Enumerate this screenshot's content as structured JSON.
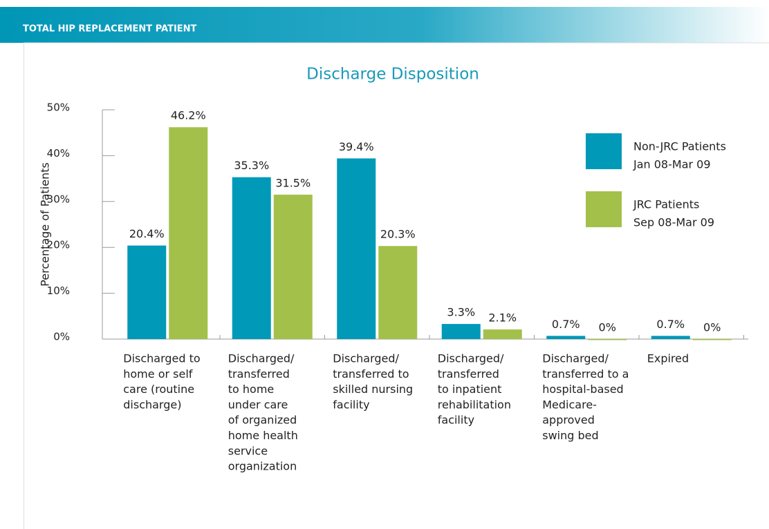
{
  "header": "TOTAL HIP REPLACEMENT PATIENT",
  "chart_data": {
    "type": "bar",
    "title": "Discharge Disposition",
    "y_label": "Percentage of Patients",
    "categories": [
      [
        "Discharged to",
        "home or self",
        "care (routine",
        "discharge)"
      ],
      [
        "Discharged/",
        "transferred",
        "to home",
        "under care",
        "of organized",
        "home health",
        "service",
        "organization"
      ],
      [
        "Discharged/",
        "transferred to",
        "skilled nursing",
        "facility"
      ],
      [
        "Discharged/",
        "transferred",
        "to inpatient",
        "rehabilitation",
        "facility"
      ],
      [
        "Discharged/",
        "transferred to a",
        "hospital-based",
        "Medicare-",
        "approved",
        "swing bed"
      ],
      [
        "Expired"
      ]
    ],
    "series": [
      {
        "name": [
          "Non-JRC Patients",
          "Jan 08-Mar 09"
        ],
        "color": "#0099b8",
        "values": [
          20.4,
          35.3,
          39.4,
          3.3,
          0.7,
          0.7
        ],
        "value_labels": [
          "20.4%",
          "35.3%",
          "39.4%",
          "3.3%",
          "0.7%",
          "0.7%"
        ]
      },
      {
        "name": [
          "JRC Patients",
          "Sep 08-Mar 09"
        ],
        "color": "#a3c14a",
        "values": [
          46.2,
          31.5,
          20.3,
          2.1,
          0,
          0
        ],
        "value_labels": [
          "46.2%",
          "31.5%",
          "20.3%",
          "2.1%",
          "0%",
          "0%"
        ]
      }
    ],
    "ylim": [
      0,
      50
    ],
    "yticks": [
      {
        "value": 0,
        "label": "0%"
      },
      {
        "value": 10,
        "label": "10%"
      },
      {
        "value": 20,
        "label": "20%"
      },
      {
        "value": 30,
        "label": "30%"
      },
      {
        "value": 40,
        "label": "40%"
      },
      {
        "value": 50,
        "label": "50%"
      }
    ],
    "legend": "top-right"
  }
}
